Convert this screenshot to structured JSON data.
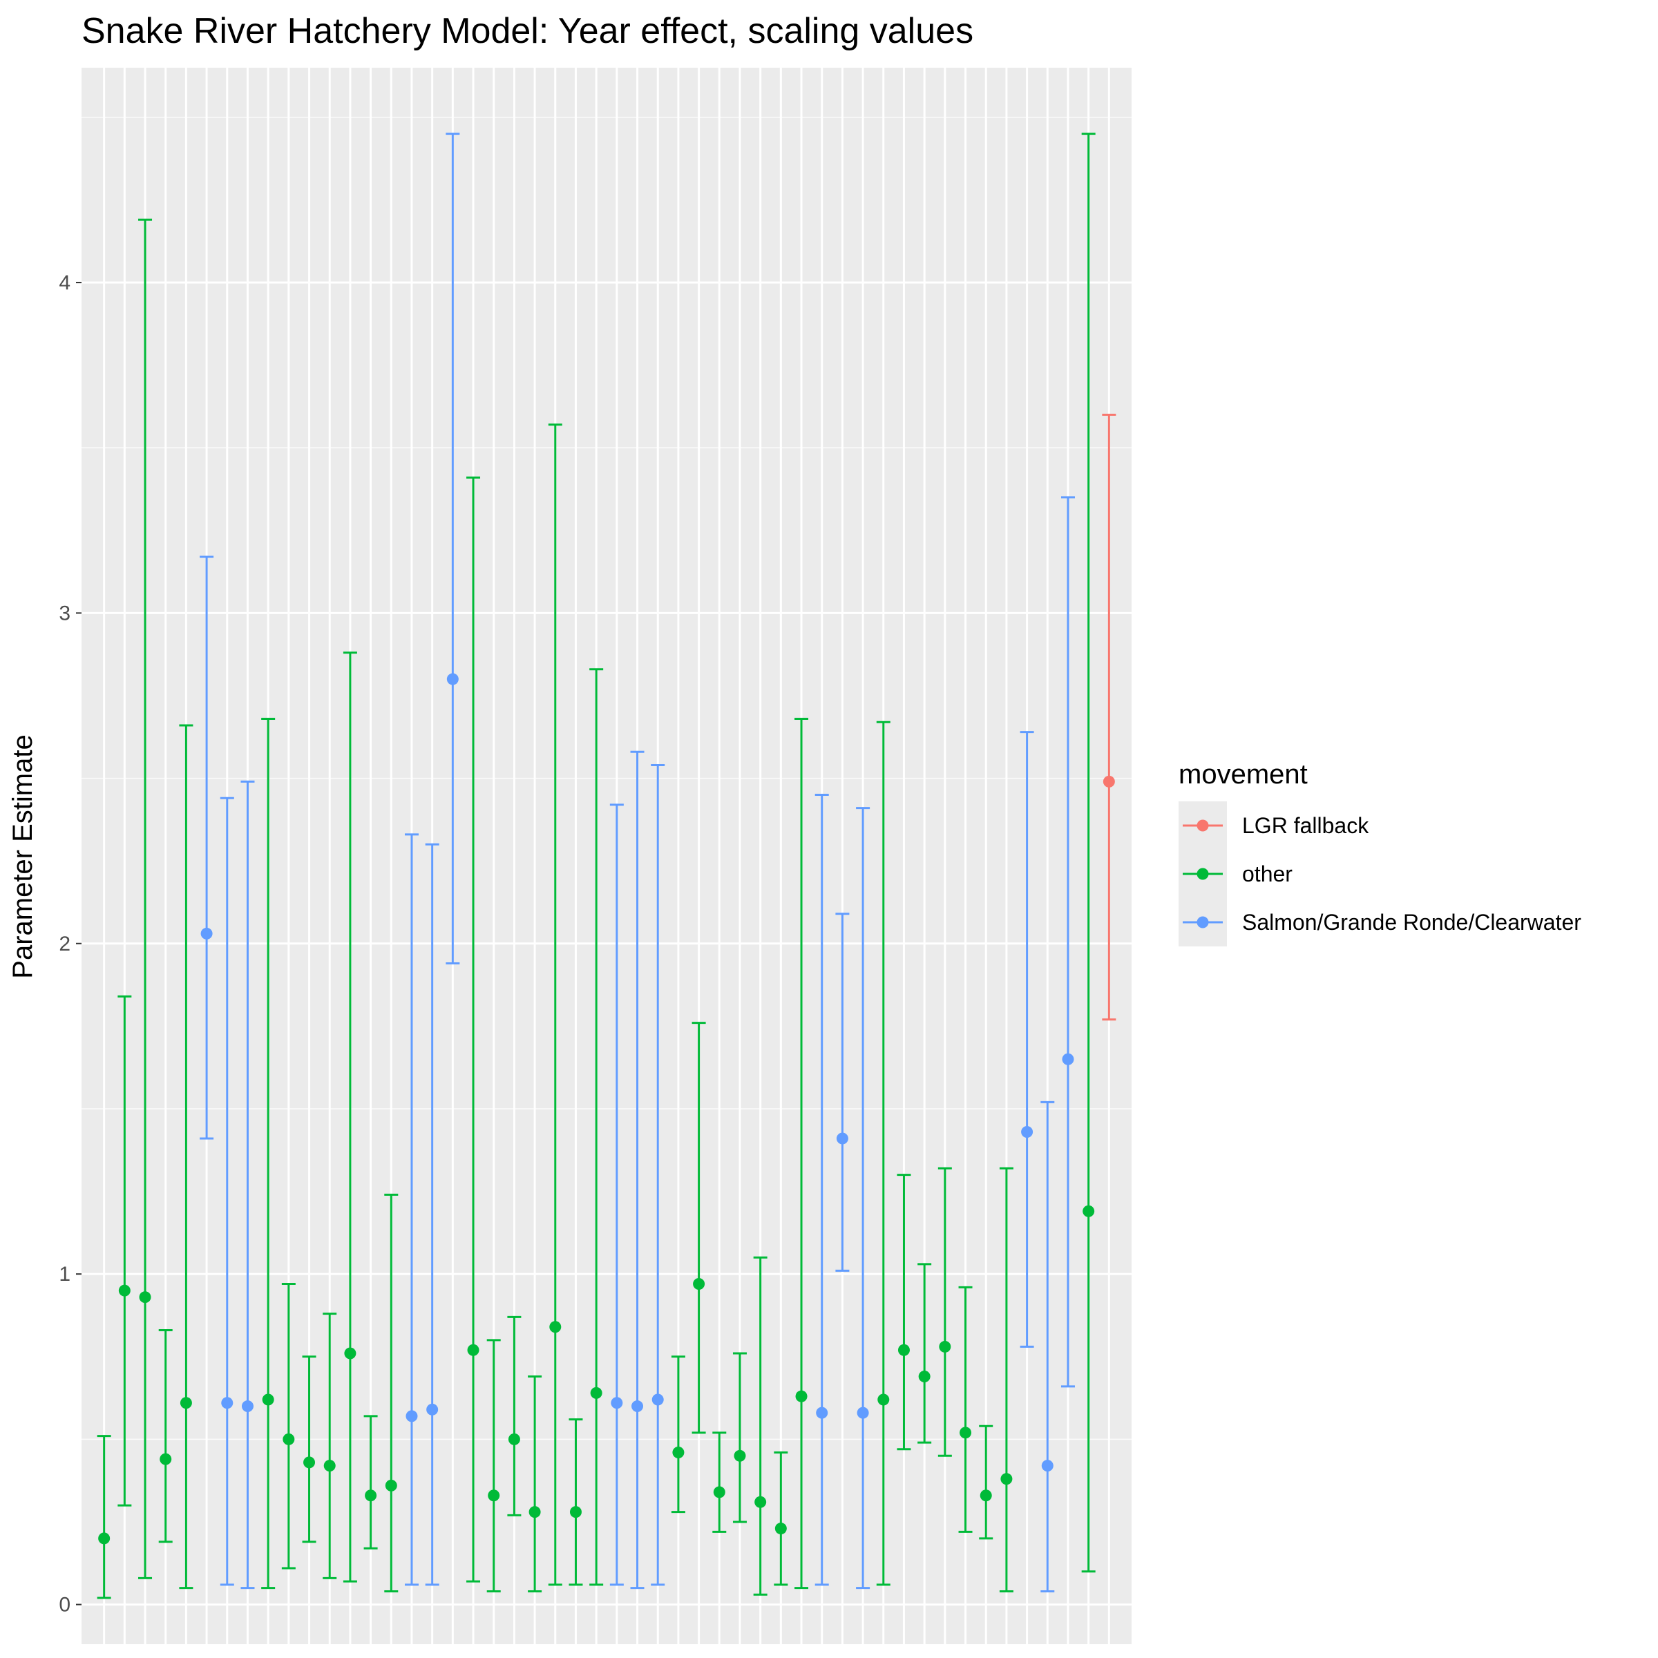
{
  "chart_data": {
    "type": "errorbar",
    "title": "Snake River Hatchery Model: Year effect, scaling values",
    "xlabel": "",
    "ylabel": "Parameter Estimate",
    "ylim": [
      -0.12,
      4.65
    ],
    "yticks": [
      0,
      1,
      2,
      3,
      4
    ],
    "grid": true,
    "legend": {
      "title": "movement",
      "position": "right",
      "entries": [
        "LGR fallback",
        "other",
        "Salmon/Grande Ronde/Clearwater"
      ]
    },
    "colors": {
      "LGR fallback": "#F8766D",
      "other": "#00BA38",
      "Salmon/Grande Ronde/Clearwater": "#619CFF"
    },
    "points": [
      {
        "g": "other",
        "y": 0.2,
        "lo": 0.02,
        "hi": 0.51
      },
      {
        "g": "other",
        "y": 0.95,
        "lo": 0.3,
        "hi": 1.84
      },
      {
        "g": "other",
        "y": 0.93,
        "lo": 0.08,
        "hi": 4.19
      },
      {
        "g": "other",
        "y": 0.44,
        "lo": 0.19,
        "hi": 0.83
      },
      {
        "g": "other",
        "y": 0.61,
        "lo": 0.05,
        "hi": 2.66
      },
      {
        "g": "Salmon/Grande Ronde/Clearwater",
        "y": 2.03,
        "lo": 1.41,
        "hi": 3.17
      },
      {
        "g": "Salmon/Grande Ronde/Clearwater",
        "y": 0.61,
        "lo": 0.06,
        "hi": 2.44
      },
      {
        "g": "Salmon/Grande Ronde/Clearwater",
        "y": 0.6,
        "lo": 0.05,
        "hi": 2.49
      },
      {
        "g": "other",
        "y": 0.62,
        "lo": 0.05,
        "hi": 2.68
      },
      {
        "g": "other",
        "y": 0.5,
        "lo": 0.11,
        "hi": 0.97
      },
      {
        "g": "other",
        "y": 0.43,
        "lo": 0.19,
        "hi": 0.75
      },
      {
        "g": "other",
        "y": 0.42,
        "lo": 0.08,
        "hi": 0.88
      },
      {
        "g": "other",
        "y": 0.76,
        "lo": 0.07,
        "hi": 2.88
      },
      {
        "g": "other",
        "y": 0.33,
        "lo": 0.17,
        "hi": 0.57
      },
      {
        "g": "other",
        "y": 0.36,
        "lo": 0.04,
        "hi": 1.24
      },
      {
        "g": "Salmon/Grande Ronde/Clearwater",
        "y": 0.57,
        "lo": 0.06,
        "hi": 2.33
      },
      {
        "g": "Salmon/Grande Ronde/Clearwater",
        "y": 0.59,
        "lo": 0.06,
        "hi": 2.3
      },
      {
        "g": "Salmon/Grande Ronde/Clearwater",
        "y": 2.8,
        "lo": 1.94,
        "hi": 4.45
      },
      {
        "g": "other",
        "y": 0.77,
        "lo": 0.07,
        "hi": 3.41
      },
      {
        "g": "other",
        "y": 0.33,
        "lo": 0.04,
        "hi": 0.8
      },
      {
        "g": "other",
        "y": 0.5,
        "lo": 0.27,
        "hi": 0.87
      },
      {
        "g": "other",
        "y": 0.28,
        "lo": 0.04,
        "hi": 0.69
      },
      {
        "g": "other",
        "y": 0.84,
        "lo": 0.06,
        "hi": 3.57
      },
      {
        "g": "other",
        "y": 0.28,
        "lo": 0.06,
        "hi": 0.56
      },
      {
        "g": "other",
        "y": 0.64,
        "lo": 0.06,
        "hi": 2.83
      },
      {
        "g": "Salmon/Grande Ronde/Clearwater",
        "y": 0.61,
        "lo": 0.06,
        "hi": 2.42
      },
      {
        "g": "Salmon/Grande Ronde/Clearwater",
        "y": 0.6,
        "lo": 0.05,
        "hi": 2.58
      },
      {
        "g": "Salmon/Grande Ronde/Clearwater",
        "y": 0.62,
        "lo": 0.06,
        "hi": 2.54
      },
      {
        "g": "other",
        "y": 0.46,
        "lo": 0.28,
        "hi": 0.75
      },
      {
        "g": "other",
        "y": 0.97,
        "lo": 0.52,
        "hi": 1.76
      },
      {
        "g": "other",
        "y": 0.34,
        "lo": 0.22,
        "hi": 0.52
      },
      {
        "g": "other",
        "y": 0.45,
        "lo": 0.25,
        "hi": 0.76
      },
      {
        "g": "other",
        "y": 0.31,
        "lo": 0.03,
        "hi": 1.05
      },
      {
        "g": "other",
        "y": 0.23,
        "lo": 0.06,
        "hi": 0.46
      },
      {
        "g": "other",
        "y": 0.63,
        "lo": 0.05,
        "hi": 2.68
      },
      {
        "g": "Salmon/Grande Ronde/Clearwater",
        "y": 0.58,
        "lo": 0.06,
        "hi": 2.45
      },
      {
        "g": "Salmon/Grande Ronde/Clearwater",
        "y": 1.41,
        "lo": 1.01,
        "hi": 2.09
      },
      {
        "g": "Salmon/Grande Ronde/Clearwater",
        "y": 0.58,
        "lo": 0.05,
        "hi": 2.41
      },
      {
        "g": "other",
        "y": 0.62,
        "lo": 0.06,
        "hi": 2.67
      },
      {
        "g": "other",
        "y": 0.77,
        "lo": 0.47,
        "hi": 1.3
      },
      {
        "g": "other",
        "y": 0.69,
        "lo": 0.49,
        "hi": 1.03
      },
      {
        "g": "other",
        "y": 0.78,
        "lo": 0.45,
        "hi": 1.32
      },
      {
        "g": "other",
        "y": 0.52,
        "lo": 0.22,
        "hi": 0.96
      },
      {
        "g": "other",
        "y": 0.33,
        "lo": 0.2,
        "hi": 0.54
      },
      {
        "g": "other",
        "y": 0.38,
        "lo": 0.04,
        "hi": 1.32
      },
      {
        "g": "Salmon/Grande Ronde/Clearwater",
        "y": 1.43,
        "lo": 0.78,
        "hi": 2.64
      },
      {
        "g": "Salmon/Grande Ronde/Clearwater",
        "y": 0.42,
        "lo": 0.04,
        "hi": 1.52
      },
      {
        "g": "Salmon/Grande Ronde/Clearwater",
        "y": 1.65,
        "lo": 0.66,
        "hi": 3.35
      },
      {
        "g": "other",
        "y": 1.19,
        "lo": 0.1,
        "hi": 4.45
      },
      {
        "g": "LGR fallback",
        "y": 2.49,
        "lo": 1.77,
        "hi": 3.6
      }
    ]
  }
}
